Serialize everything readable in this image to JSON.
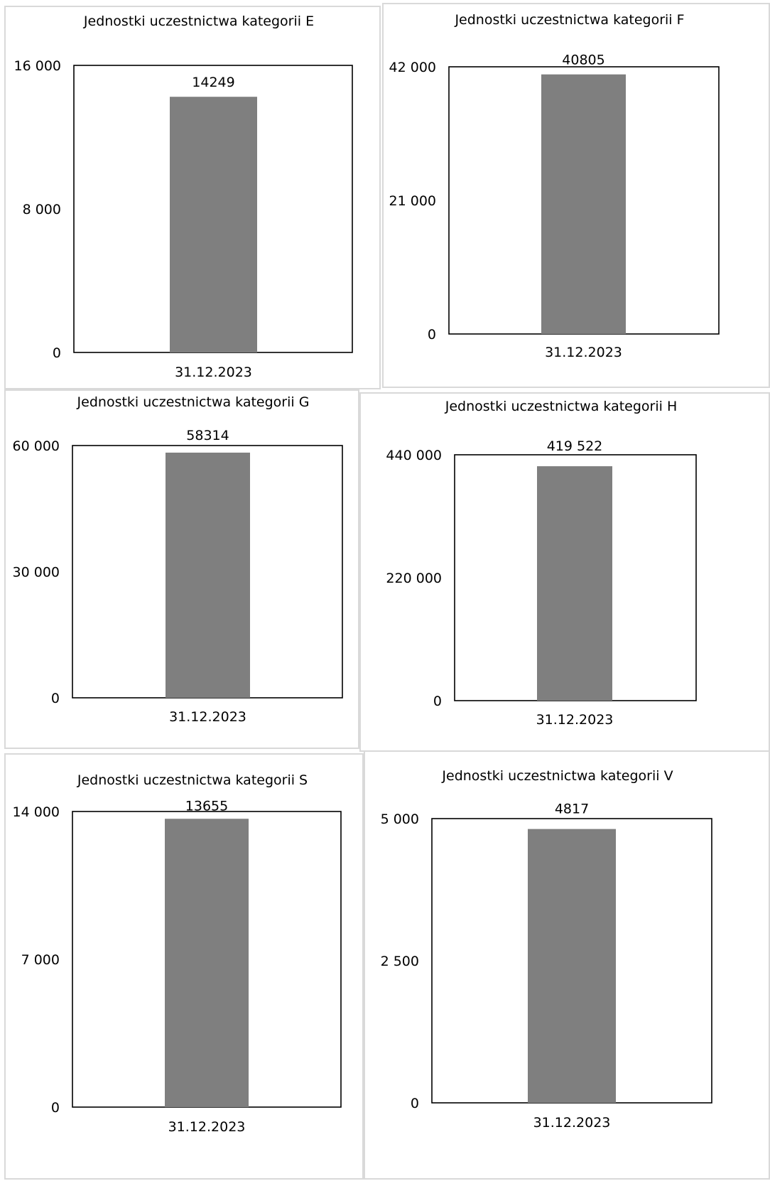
{
  "chart_data": [
    {
      "type": "bar",
      "title": "Jednostki uczestnictwa kategorii E",
      "categories": [
        "31.12.2023"
      ],
      "values": [
        14249
      ],
      "data_labels": [
        "14249"
      ],
      "ylim": [
        0,
        16000
      ],
      "yticks": [
        0,
        8000,
        16000
      ],
      "ytick_labels": [
        "0",
        "8 000",
        "16 000"
      ],
      "grid": false,
      "bar_color": "#7f7f7f"
    },
    {
      "type": "bar",
      "title": "Jednostki uczestnictwa kategorii F",
      "categories": [
        "31.12.2023"
      ],
      "values": [
        40805
      ],
      "data_labels": [
        "40805"
      ],
      "ylim": [
        0,
        42000
      ],
      "yticks": [
        0,
        21000,
        42000
      ],
      "ytick_labels": [
        "0",
        "21 000",
        "42 000"
      ],
      "grid": false,
      "bar_color": "#7f7f7f"
    },
    {
      "type": "bar",
      "title": "Jednostki uczestnictwa kategorii G",
      "categories": [
        "31.12.2023"
      ],
      "values": [
        58314
      ],
      "data_labels": [
        "58314"
      ],
      "ylim": [
        0,
        60000
      ],
      "yticks": [
        0,
        30000,
        60000
      ],
      "ytick_labels": [
        "0",
        "30 000",
        "60 000"
      ],
      "grid": false,
      "bar_color": "#7f7f7f"
    },
    {
      "type": "bar",
      "title": "Jednostki uczestnictwa kategorii H",
      "categories": [
        "31.12.2023"
      ],
      "values": [
        419522
      ],
      "data_labels": [
        "419 522"
      ],
      "ylim": [
        0,
        440000
      ],
      "yticks": [
        0,
        220000,
        440000
      ],
      "ytick_labels": [
        "0",
        "220 000",
        "440 000"
      ],
      "grid": false,
      "bar_color": "#7f7f7f"
    },
    {
      "type": "bar",
      "title": "Jednostki uczestnictwa kategorii S",
      "categories": [
        "31.12.2023"
      ],
      "values": [
        13655
      ],
      "data_labels": [
        "13655"
      ],
      "ylim": [
        0,
        14000
      ],
      "yticks": [
        0,
        7000,
        14000
      ],
      "ytick_labels": [
        "0",
        "7 000",
        "14 000"
      ],
      "grid": false,
      "bar_color": "#7f7f7f"
    },
    {
      "type": "bar",
      "title": "Jednostki uczestnictwa kategorii V",
      "categories": [
        "31.12.2023"
      ],
      "values": [
        4817
      ],
      "data_labels": [
        "4817"
      ],
      "ylim": [
        0,
        5000
      ],
      "yticks": [
        0,
        2500,
        5000
      ],
      "ytick_labels": [
        "0",
        "2 500",
        "5 000"
      ],
      "grid": false,
      "bar_color": "#7f7f7f"
    }
  ]
}
